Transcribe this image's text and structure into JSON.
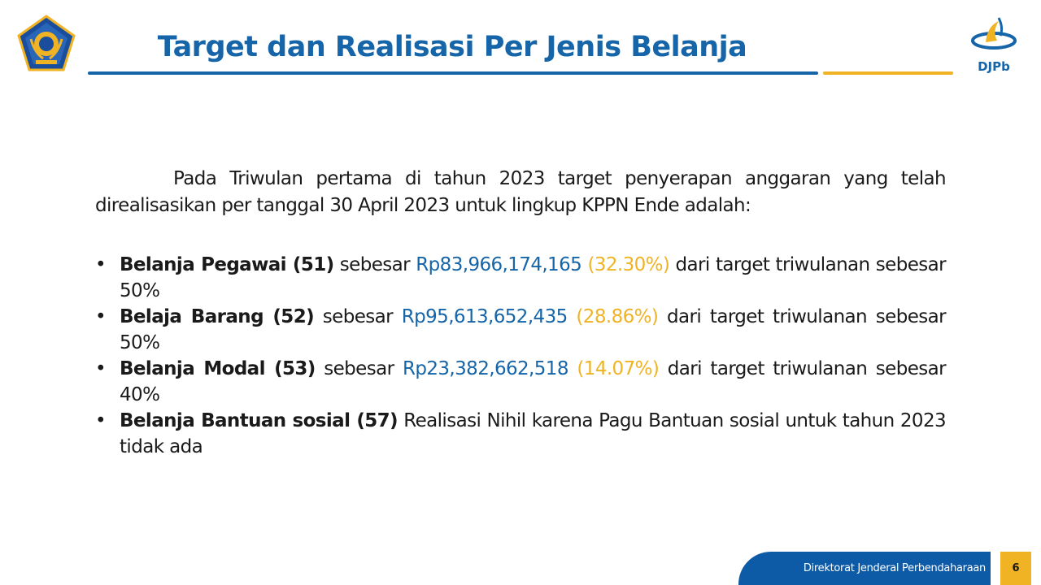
{
  "header": {
    "title": "Target dan Realisasi Per Jenis Belanja",
    "right_logo_text": "DJPb",
    "left_logo_icon": "kemenkeu-emblem-icon",
    "right_logo_icon": "djpb-logo-icon"
  },
  "content": {
    "intro": "Pada Triwulan pertama di tahun 2023 target penyerapan anggaran yang telah direalisasikan per tanggal 30 April 2023 untuk lingkup KPPN Ende adalah:",
    "bullet": "•",
    "items": [
      {
        "label": "Belanja Pegawai (51)",
        "pre": " sebesar ",
        "amount": "Rp83,966,174,165",
        "percent": "(32.30%)",
        "post": " dari target triwulanan sebesar  50%"
      },
      {
        "label": "Belaja Barang (52)",
        "pre": " sebesar ",
        "amount": "Rp95,613,652,435",
        "percent": "(28.86%)",
        "post": " dari target triwulanan sebesar 50%"
      },
      {
        "label": "Belanja Modal (53)",
        "pre": " sebesar ",
        "amount": "Rp23,382,662,518",
        "percent": "(14.07%)",
        "post": " dari target triwulanan sebesar 40%"
      },
      {
        "label": "Belanja Bantuan sosial (57)",
        "text": " Realisasi Nihil karena Pagu Bantuan sosial untuk tahun 2023 tidak ada"
      }
    ]
  },
  "footer": {
    "org": "Direktorat Jenderal Perbendaharaan",
    "page_number": "6"
  },
  "colors": {
    "primary_blue": "#1565a8",
    "accent_gold": "#f0b323",
    "footer_blue": "#0d5aa7"
  }
}
